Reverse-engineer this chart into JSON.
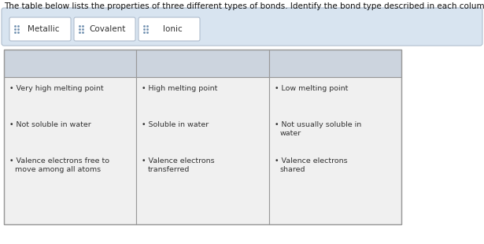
{
  "title": "The table below lists the properties of three different types of bonds. Identify the bond type described in each column.",
  "answer_buttons": [
    "Metallic",
    "Covalent",
    "Ionic"
  ],
  "answer_bg": "#d8e4f0",
  "answer_border": "#b0bece",
  "button_bg": "#ffffff",
  "button_border": "#b0bece",
  "page_bg": "#e8e8e8",
  "content_bg": "#ffffff",
  "table_border": "#999999",
  "header_bg": "#ccd4de",
  "body_bg": "#f0f0f0",
  "col1_lines": [
    [
      "Very high melting point"
    ],
    [
      "Not soluble in water"
    ],
    [
      "Valence electrons free to",
      "move among all atoms"
    ]
  ],
  "col2_lines": [
    [
      "High melting point"
    ],
    [
      "Soluble in water"
    ],
    [
      "Valence electrons",
      "transferred"
    ]
  ],
  "col3_lines": [
    [
      "Low melting point"
    ],
    [
      "Not usually soluble in",
      "water"
    ],
    [
      "Valence electrons",
      "shared"
    ]
  ],
  "title_fontsize": 7.5,
  "body_fontsize": 6.8,
  "btn_fontsize": 7.5
}
